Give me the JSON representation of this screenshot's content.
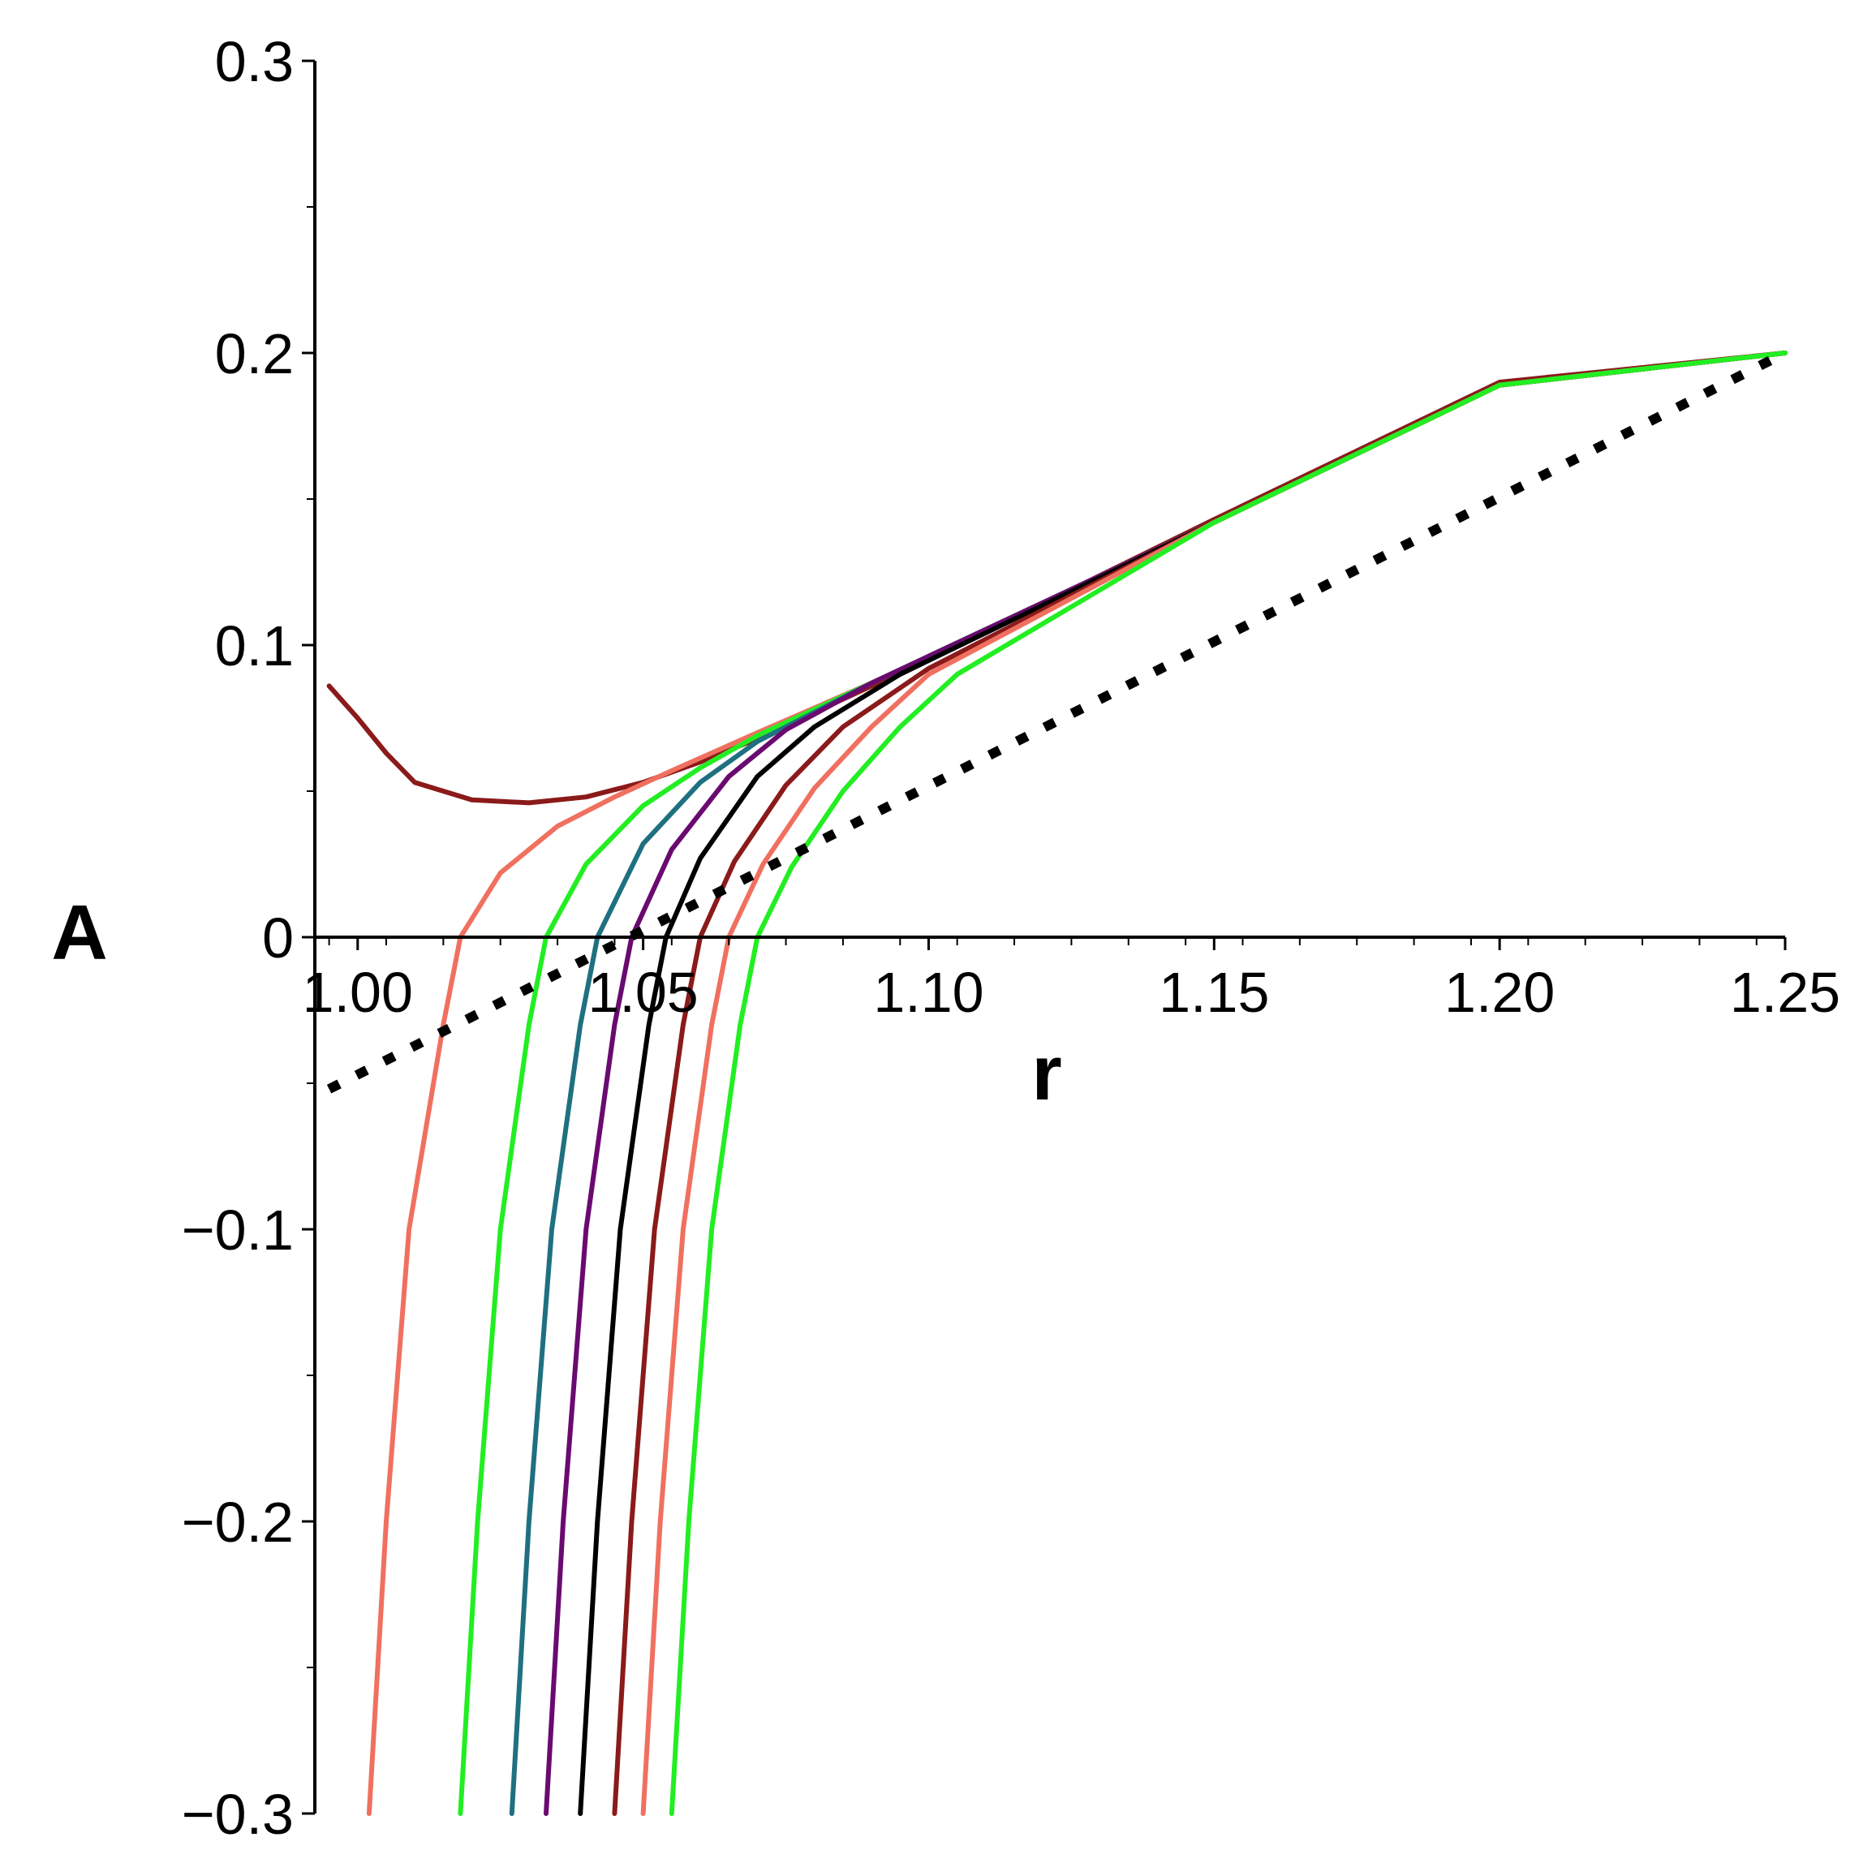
{
  "chart_data": {
    "type": "line",
    "xlabel": "r",
    "ylabel": "A",
    "xlim": [
      0.9925,
      1.25
    ],
    "ylim": [
      -0.3,
      0.3
    ],
    "x_ticks": [
      1.0,
      1.05,
      1.1,
      1.15,
      1.2,
      1.25
    ],
    "x_tick_labels": [
      "1.00",
      "1.05",
      "1.10",
      "1.15",
      "1.20",
      "1.25"
    ],
    "y_ticks": [
      0.3,
      0.2,
      0.1,
      0,
      -0.1,
      -0.2,
      -0.3
    ],
    "y_tick_labels": [
      "0.3",
      "0.2",
      "0.1",
      "0",
      "−0.1",
      "−0.2",
      "−0.3"
    ],
    "grid": false,
    "series": [
      {
        "color": "#8b1a1a",
        "style": "solid",
        "points": [
          [
            0.995,
            0.086
          ],
          [
            1.0,
            0.075
          ],
          [
            1.005,
            0.063
          ],
          [
            1.01,
            0.053
          ],
          [
            1.02,
            0.047
          ],
          [
            1.03,
            0.046
          ],
          [
            1.04,
            0.048
          ],
          [
            1.05,
            0.053
          ],
          [
            1.06,
            0.06
          ],
          [
            1.07,
            0.068
          ],
          [
            1.08,
            0.077
          ],
          [
            1.1,
            0.095
          ],
          [
            1.15,
            0.143
          ],
          [
            1.2,
            0.19
          ],
          [
            1.25,
            0.2
          ]
        ]
      },
      {
        "color": "#f07060",
        "style": "solid",
        "points": [
          [
            1.002,
            -0.3
          ],
          [
            1.005,
            -0.2
          ],
          [
            1.009,
            -0.1
          ],
          [
            1.015,
            -0.03
          ],
          [
            1.018,
            0
          ],
          [
            1.025,
            0.022
          ],
          [
            1.035,
            0.038
          ],
          [
            1.045,
            0.048
          ],
          [
            1.055,
            0.057
          ],
          [
            1.07,
            0.07
          ],
          [
            1.09,
            0.087
          ],
          [
            1.15,
            0.142
          ],
          [
            1.2,
            0.189
          ],
          [
            1.25,
            0.2
          ]
        ]
      },
      {
        "color": "#22ee22",
        "style": "solid",
        "points": [
          [
            1.018,
            -0.3
          ],
          [
            1.021,
            -0.2
          ],
          [
            1.025,
            -0.1
          ],
          [
            1.03,
            -0.03
          ],
          [
            1.033,
            0
          ],
          [
            1.04,
            0.025
          ],
          [
            1.05,
            0.045
          ],
          [
            1.06,
            0.058
          ],
          [
            1.07,
            0.069
          ],
          [
            1.09,
            0.087
          ],
          [
            1.15,
            0.142
          ],
          [
            1.2,
            0.189
          ],
          [
            1.25,
            0.2
          ]
        ]
      },
      {
        "color": "#1f7080",
        "style": "solid",
        "points": [
          [
            1.027,
            -0.3
          ],
          [
            1.03,
            -0.2
          ],
          [
            1.034,
            -0.1
          ],
          [
            1.039,
            -0.03
          ],
          [
            1.042,
            0
          ],
          [
            1.05,
            0.032
          ],
          [
            1.06,
            0.053
          ],
          [
            1.07,
            0.067
          ],
          [
            1.09,
            0.087
          ],
          [
            1.15,
            0.142
          ],
          [
            1.2,
            0.189
          ],
          [
            1.25,
            0.2
          ]
        ]
      },
      {
        "color": "#6a0a70",
        "style": "solid",
        "points": [
          [
            1.033,
            -0.3
          ],
          [
            1.036,
            -0.2
          ],
          [
            1.04,
            -0.1
          ],
          [
            1.045,
            -0.03
          ],
          [
            1.048,
            0
          ],
          [
            1.055,
            0.03
          ],
          [
            1.065,
            0.055
          ],
          [
            1.075,
            0.071
          ],
          [
            1.09,
            0.087
          ],
          [
            1.15,
            0.142
          ],
          [
            1.2,
            0.189
          ],
          [
            1.25,
            0.2
          ]
        ]
      },
      {
        "color": "#000000",
        "style": "solid",
        "points": [
          [
            1.039,
            -0.3
          ],
          [
            1.042,
            -0.2
          ],
          [
            1.046,
            -0.1
          ],
          [
            1.051,
            -0.03
          ],
          [
            1.054,
            0
          ],
          [
            1.06,
            0.027
          ],
          [
            1.07,
            0.055
          ],
          [
            1.08,
            0.072
          ],
          [
            1.095,
            0.09
          ],
          [
            1.15,
            0.142
          ],
          [
            1.2,
            0.189
          ],
          [
            1.25,
            0.2
          ]
        ]
      },
      {
        "color": "#8b1a1a",
        "style": "solid",
        "points": [
          [
            1.045,
            -0.3
          ],
          [
            1.048,
            -0.2
          ],
          [
            1.052,
            -0.1
          ],
          [
            1.057,
            -0.03
          ],
          [
            1.06,
            0
          ],
          [
            1.066,
            0.026
          ],
          [
            1.075,
            0.052
          ],
          [
            1.085,
            0.072
          ],
          [
            1.1,
            0.092
          ],
          [
            1.15,
            0.142
          ],
          [
            1.2,
            0.189
          ],
          [
            1.25,
            0.2
          ]
        ]
      },
      {
        "color": "#f07060",
        "style": "solid",
        "points": [
          [
            1.05,
            -0.3
          ],
          [
            1.053,
            -0.2
          ],
          [
            1.057,
            -0.1
          ],
          [
            1.062,
            -0.03
          ],
          [
            1.065,
            0
          ],
          [
            1.071,
            0.025
          ],
          [
            1.08,
            0.051
          ],
          [
            1.09,
            0.072
          ],
          [
            1.1,
            0.09
          ],
          [
            1.15,
            0.142
          ],
          [
            1.2,
            0.189
          ],
          [
            1.25,
            0.2
          ]
        ]
      },
      {
        "color": "#22ee22",
        "style": "solid",
        "points": [
          [
            1.055,
            -0.3
          ],
          [
            1.058,
            -0.2
          ],
          [
            1.062,
            -0.1
          ],
          [
            1.067,
            -0.03
          ],
          [
            1.07,
            0
          ],
          [
            1.076,
            0.024
          ],
          [
            1.085,
            0.05
          ],
          [
            1.095,
            0.072
          ],
          [
            1.105,
            0.09
          ],
          [
            1.15,
            0.142
          ],
          [
            1.2,
            0.189
          ],
          [
            1.25,
            0.2
          ]
        ]
      },
      {
        "color": "#000000",
        "style": "dotted",
        "points": [
          [
            0.995,
            -0.052
          ],
          [
            1.25,
            0.2
          ]
        ]
      }
    ]
  }
}
